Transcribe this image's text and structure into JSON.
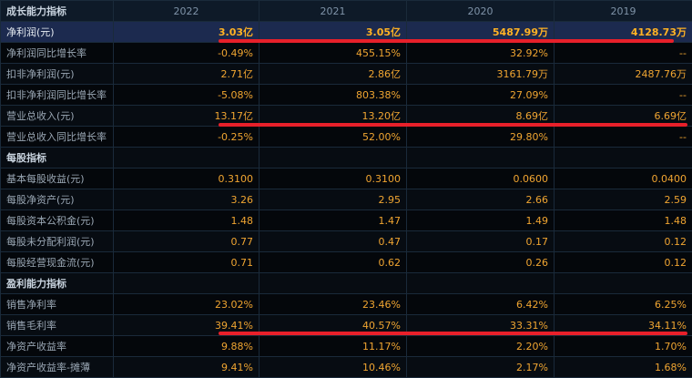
{
  "header": {
    "title": "成长能力指标",
    "years": [
      "2022",
      "2021",
      "2020",
      "2019"
    ]
  },
  "rows": [
    {
      "label": "净利润(元)",
      "values": [
        "3.03亿",
        "3.05亿",
        "5487.99万",
        "4128.73万"
      ]
    },
    {
      "label": "净利润同比增长率",
      "values": [
        "-0.49%",
        "455.15%",
        "32.92%",
        "--"
      ]
    },
    {
      "label": "扣非净利润(元)",
      "values": [
        "2.71亿",
        "2.86亿",
        "3161.79万",
        "2487.76万"
      ]
    },
    {
      "label": "扣非净利润同比增长率",
      "values": [
        "-5.08%",
        "803.38%",
        "27.09%",
        "--"
      ]
    },
    {
      "label": "营业总收入(元)",
      "values": [
        "13.17亿",
        "13.20亿",
        "8.69亿",
        "6.69亿"
      ]
    },
    {
      "label": "营业总收入同比增长率",
      "values": [
        "-0.25%",
        "52.00%",
        "29.80%",
        "--"
      ]
    },
    {
      "label": "每股指标",
      "section": true
    },
    {
      "label": "基本每股收益(元)",
      "values": [
        "0.3100",
        "0.3100",
        "0.0600",
        "0.0400"
      ]
    },
    {
      "label": "每股净资产(元)",
      "values": [
        "3.26",
        "2.95",
        "2.66",
        "2.59"
      ]
    },
    {
      "label": "每股资本公积金(元)",
      "values": [
        "1.48",
        "1.47",
        "1.49",
        "1.48"
      ]
    },
    {
      "label": "每股未分配利润(元)",
      "values": [
        "0.77",
        "0.47",
        "0.17",
        "0.12"
      ]
    },
    {
      "label": "每股经营现金流(元)",
      "values": [
        "0.71",
        "0.62",
        "0.26",
        "0.12"
      ]
    },
    {
      "label": "盈利能力指标",
      "section": true
    },
    {
      "label": "销售净利率",
      "values": [
        "23.02%",
        "23.46%",
        "6.42%",
        "6.25%"
      ]
    },
    {
      "label": "销售毛利率",
      "values": [
        "39.41%",
        "40.57%",
        "33.31%",
        "34.11%"
      ]
    },
    {
      "label": "净资产收益率",
      "values": [
        "9.88%",
        "11.17%",
        "2.20%",
        "1.70%"
      ]
    },
    {
      "label": "净资产收益率-摊薄",
      "values": [
        "9.41%",
        "10.46%",
        "2.17%",
        "1.68%"
      ]
    }
  ]
}
